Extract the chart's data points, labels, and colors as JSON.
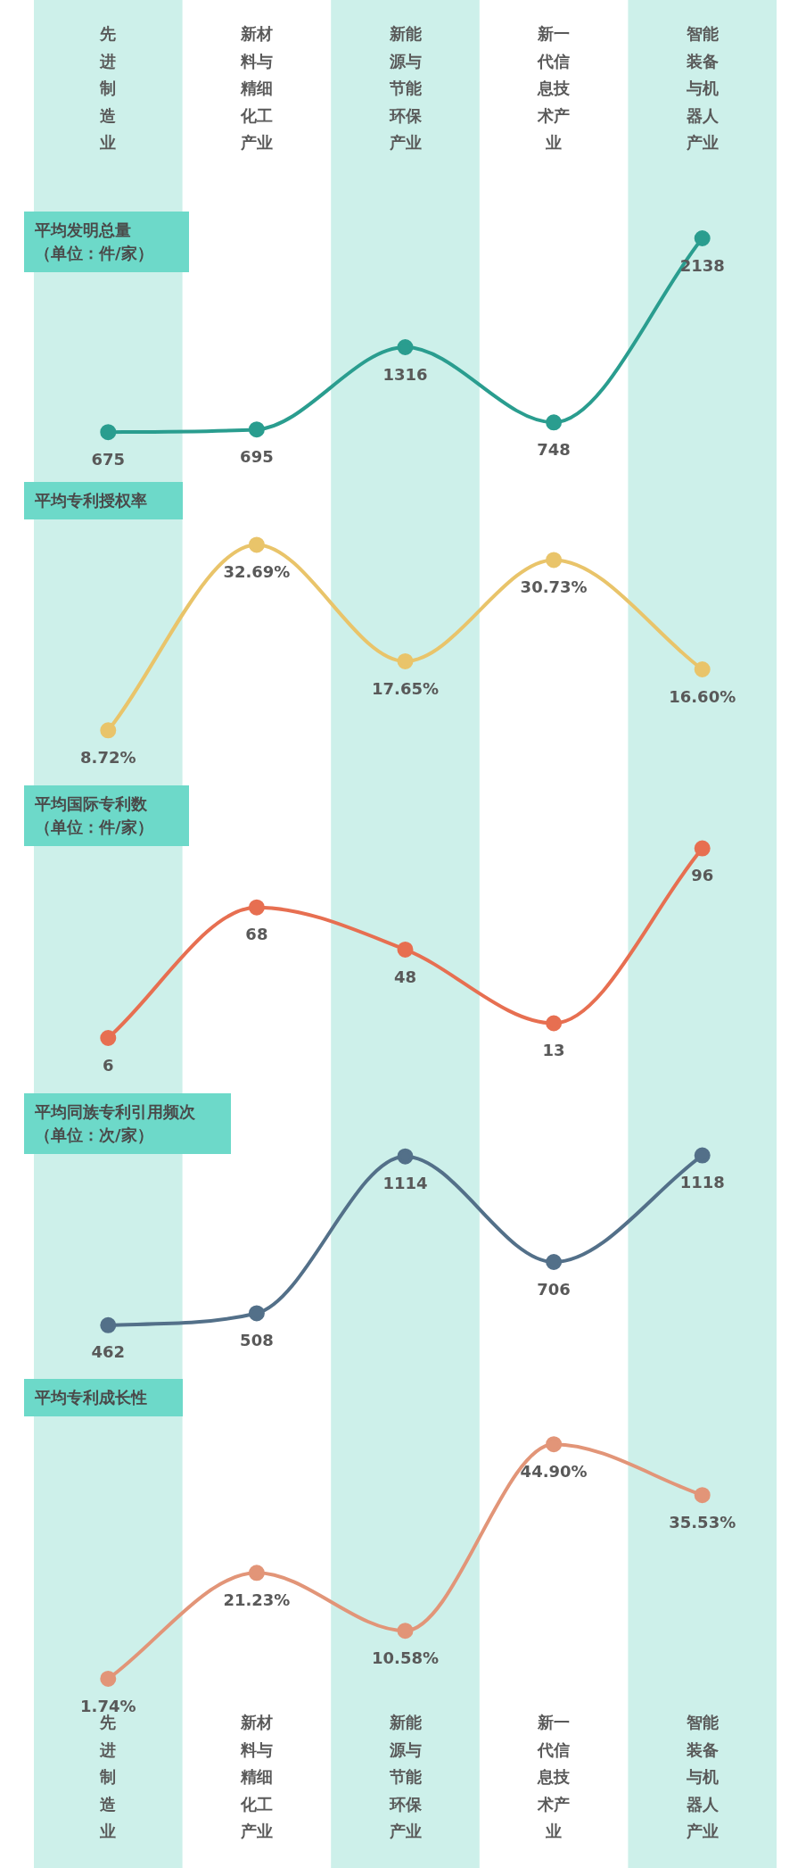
{
  "chart_data": [
    {
      "type": "line",
      "title": "平均发明总量",
      "subtitle": "（单位：件/家）",
      "categories": [
        "先进制造业",
        "新材料与精细化工产业",
        "新能源与节能环保产业",
        "新一代信息技术产业",
        "智能装备与机器人产业"
      ],
      "tick_labels": "x",
      "marker": "circle",
      "bands": [
        {
          "axis": "x",
          "from": "先进制造业",
          "to": "先进制造业",
          "color": "#cdf0ea"
        },
        {
          "axis": "x",
          "from": "新能源与节能环保产业",
          "to": "新能源与节能环保产业",
          "color": "#cdf0ea"
        },
        {
          "axis": "x",
          "from": "智能装备与机器人产业",
          "to": "智能装备与机器人产业",
          "color": "#cdf0ea"
        }
      ],
      "series": [
        {
          "color": "#2a9d8f",
          "values": [
            675,
            695,
            1316,
            748,
            2138
          ],
          "value_labels": [
            "675",
            "695",
            "1316",
            "748",
            "2138"
          ]
        }
      ]
    },
    {
      "type": "line",
      "title": "平均专利授权率",
      "categories": [
        "先进制造业",
        "新材料与精细化工产业",
        "新能源与节能环保产业",
        "新一代信息技术产业",
        "智能装备与机器人产业"
      ],
      "tick_labels": false,
      "marker": "circle",
      "bands": [
        {
          "axis": "x",
          "from": "先进制造业",
          "to": "先进制造业",
          "color": "#cdf0ea"
        },
        {
          "axis": "x",
          "from": "新能源与节能环保产业",
          "to": "新能源与节能环保产业",
          "color": "#cdf0ea"
        },
        {
          "axis": "x",
          "from": "智能装备与机器人产业",
          "to": "智能装备与机器人产业",
          "color": "#cdf0ea"
        }
      ],
      "series": [
        {
          "color": "#e9c46a",
          "values": [
            8.72,
            32.69,
            17.65,
            30.73,
            16.6
          ],
          "value_labels": [
            "8.72%",
            "32.69%",
            "17.65%",
            "30.73%",
            "16.60%"
          ]
        }
      ]
    },
    {
      "type": "line",
      "title": "平均国际专利数",
      "subtitle": "（单位：件/家）",
      "categories": [
        "先进制造业",
        "新材料与精细化工产业",
        "新能源与节能环保产业",
        "新一代信息技术产业",
        "智能装备与机器人产业"
      ],
      "tick_labels": false,
      "marker": "circle",
      "bands": [
        {
          "axis": "x",
          "from": "先进制造业",
          "to": "先进制造业",
          "color": "#cdf0ea"
        },
        {
          "axis": "x",
          "from": "新能源与节能环保产业",
          "to": "新能源与节能环保产业",
          "color": "#cdf0ea"
        },
        {
          "axis": "x",
          "from": "智能装备与机器人产业",
          "to": "智能装备与机器人产业",
          "color": "#cdf0ea"
        }
      ],
      "series": [
        {
          "color": "#e76f51",
          "values": [
            6,
            68,
            48,
            13,
            96
          ],
          "value_labels": [
            "6",
            "68",
            "48",
            "13",
            "96"
          ]
        }
      ]
    },
    {
      "type": "line",
      "title": "平均同族专利引用频次",
      "subtitle": "（单位：次/家）",
      "categories": [
        "先进制造业",
        "新材料与精细化工产业",
        "新能源与节能环保产业",
        "新一代信息技术产业",
        "智能装备与机器人产业"
      ],
      "tick_labels": false,
      "marker": "circle",
      "bands": [
        {
          "axis": "x",
          "from": "先进制造业",
          "to": "先进制造业",
          "color": "#cdf0ea"
        },
        {
          "axis": "x",
          "from": "新能源与节能环保产业",
          "to": "新能源与节能环保产业",
          "color": "#cdf0ea"
        },
        {
          "axis": "x",
          "from": "智能装备与机器人产业",
          "to": "智能装备与机器人产业",
          "color": "#cdf0ea"
        }
      ],
      "series": [
        {
          "color": "#537089",
          "values": [
            462,
            508,
            1114,
            706,
            1118
          ],
          "value_labels": [
            "462",
            "508",
            "1114",
            "706",
            "1118"
          ]
        }
      ]
    },
    {
      "type": "line",
      "title": "平均专利成长性",
      "categories": [
        "先进制造业",
        "新材料与精细化工产业",
        "新能源与节能环保产业",
        "新一代信息技术产业",
        "智能装备与机器人产业"
      ],
      "tick_labels": "x",
      "marker": "circle",
      "bands": [
        {
          "axis": "x",
          "from": "先进制造业",
          "to": "先进制造业",
          "color": "#cdf0ea"
        },
        {
          "axis": "x",
          "from": "新能源与节能环保产业",
          "to": "新能源与节能环保产业",
          "color": "#cdf0ea"
        },
        {
          "axis": "x",
          "from": "智能装备与机器人产业",
          "to": "智能装备与机器人产业",
          "color": "#cdf0ea"
        }
      ],
      "series": [
        {
          "color": "#e29578",
          "values": [
            1.74,
            21.23,
            10.58,
            44.9,
            35.53
          ],
          "value_labels": [
            "1.74%",
            "21.23%",
            "10.58%",
            "44.90%",
            "35.53%"
          ]
        }
      ]
    }
  ]
}
